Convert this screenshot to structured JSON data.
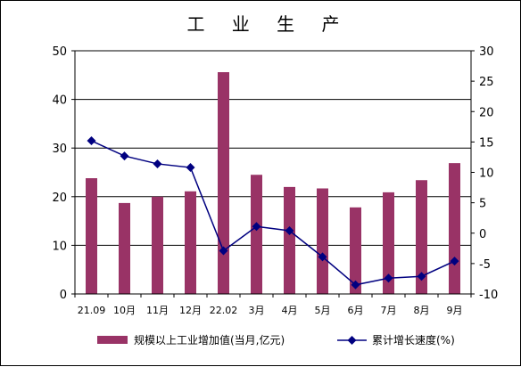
{
  "chart_data": {
    "type": "bar+line",
    "title": "工 业 生 产",
    "categories": [
      "21.09",
      "10月",
      "11月",
      "12月",
      "22.02",
      "3月",
      "4月",
      "5月",
      "6月",
      "7月",
      "8月",
      "9月"
    ],
    "series": [
      {
        "name": "规模以上工业增加值(当月,亿元)",
        "type": "bar",
        "axis": "left",
        "color": "#993366",
        "values": [
          23.8,
          18.7,
          20.0,
          21.1,
          45.6,
          24.5,
          22.0,
          21.7,
          17.8,
          20.9,
          23.4,
          26.9
        ]
      },
      {
        "name": "累计增长速度(%)",
        "type": "line",
        "axis": "right",
        "color": "#000080",
        "values": [
          15.2,
          12.7,
          11.4,
          10.8,
          -2.9,
          1.1,
          0.4,
          -3.9,
          -8.5,
          -7.4,
          -7.1,
          -4.6
        ]
      }
    ],
    "y_left": {
      "ylim": [
        0,
        50
      ],
      "ticks": [
        0,
        10,
        20,
        30,
        40,
        50
      ]
    },
    "y_right": {
      "ylim": [
        -10,
        30
      ],
      "ticks": [
        -10,
        -5,
        0,
        5,
        10,
        15,
        20,
        25,
        30
      ]
    },
    "grid": true,
    "legend_position": "bottom"
  }
}
